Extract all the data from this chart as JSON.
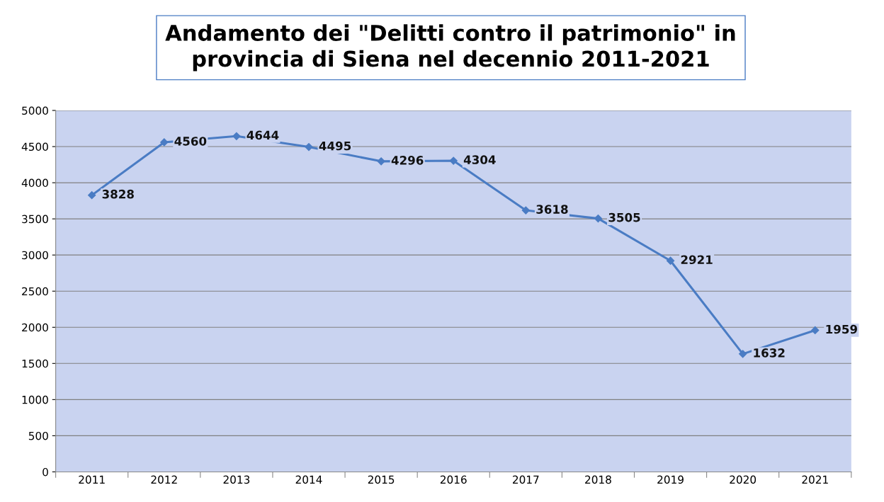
{
  "chart_data": {
    "type": "line",
    "title": "Andamento dei \"Delitti contro il patrimonio\" in\nprovincia di Siena nel decennio 2011-2021",
    "categories": [
      "2011",
      "2012",
      "2013",
      "2014",
      "2015",
      "2016",
      "2017",
      "2018",
      "2019",
      "2020",
      "2021"
    ],
    "series": [
      {
        "color": "#4a7cc4",
        "values": [
          3828,
          4560,
          4644,
          4495,
          4296,
          4304,
          3618,
          3505,
          2921,
          1632,
          1959
        ]
      }
    ],
    "ylim": [
      0,
      5000
    ],
    "yticks": [
      0,
      500,
      1000,
      1500,
      2000,
      2500,
      3000,
      3500,
      4000,
      4500,
      5000
    ],
    "grid": "y",
    "marker": "diamond",
    "line_style": "solid",
    "data_labels": true
  }
}
